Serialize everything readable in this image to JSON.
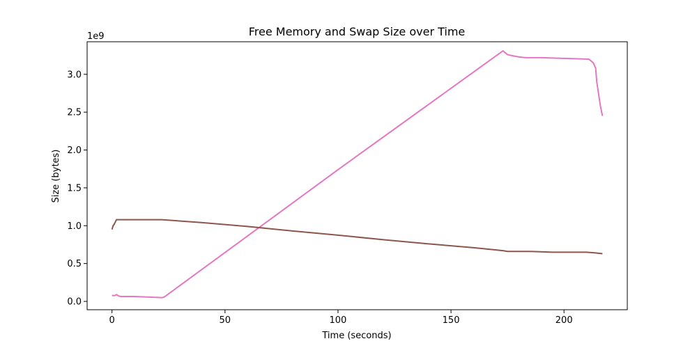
{
  "chart_data": {
    "type": "line",
    "title": "Free Memory and Swap Size over Time",
    "xlabel": "Time (seconds)",
    "ylabel": "Size (bytes)",
    "y_scale_label": "1e9",
    "xlim": [
      -11,
      228
    ],
    "ylim": [
      -110000000.0,
      3430000000.0
    ],
    "x_ticks": [
      0,
      50,
      100,
      150,
      200
    ],
    "x_tick_labels": [
      "0",
      "50",
      "100",
      "150",
      "200"
    ],
    "y_ticks": [
      0.0,
      500000000.0,
      1000000000.0,
      1500000000.0,
      2000000000.0,
      2500000000.0,
      3000000000.0
    ],
    "y_tick_labels": [
      "0.0",
      "0.5",
      "1.0",
      "1.5",
      "2.0",
      "2.5",
      "3.0"
    ],
    "grid": false,
    "series": [
      {
        "color": "#e377c2",
        "points": [
          [
            0,
            80000000.0
          ],
          [
            1,
            75000000.0
          ],
          [
            2,
            90000000.0
          ],
          [
            3,
            70000000.0
          ],
          [
            4,
            65000000.0
          ],
          [
            10,
            65000000.0
          ],
          [
            22,
            50000000.0
          ],
          [
            23,
            55000000.0
          ],
          [
            100,
            1740000000.0
          ],
          [
            173,
            3310000000.0
          ],
          [
            175,
            3260000000.0
          ],
          [
            178,
            3240000000.0
          ],
          [
            180,
            3230000000.0
          ],
          [
            183,
            3220000000.0
          ],
          [
            190,
            3220000000.0
          ],
          [
            200,
            3210000000.0
          ],
          [
            211,
            3200000000.0
          ],
          [
            213,
            3150000000.0
          ],
          [
            214,
            3080000000.0
          ],
          [
            214.5,
            2900000000.0
          ],
          [
            215,
            2800000000.0
          ],
          [
            216,
            2600000000.0
          ],
          [
            217,
            2450000000.0
          ]
        ]
      },
      {
        "color": "#8c564b",
        "points": [
          [
            0,
            950000000.0
          ],
          [
            0.5,
            1000000000.0
          ],
          [
            1,
            1020000000.0
          ],
          [
            2,
            1080000000.0
          ],
          [
            10,
            1080000000.0
          ],
          [
            22,
            1080000000.0
          ],
          [
            40,
            1040000000.0
          ],
          [
            60,
            990000000.0
          ],
          [
            80,
            930000000.0
          ],
          [
            100,
            875000000.0
          ],
          [
            120,
            815000000.0
          ],
          [
            140,
            760000000.0
          ],
          [
            160,
            710000000.0
          ],
          [
            173,
            670000000.0
          ],
          [
            175,
            660000000.0
          ],
          [
            185,
            660000000.0
          ],
          [
            195,
            650000000.0
          ],
          [
            210,
            650000000.0
          ],
          [
            214,
            640000000.0
          ],
          [
            217,
            630000000.0
          ]
        ]
      }
    ]
  }
}
